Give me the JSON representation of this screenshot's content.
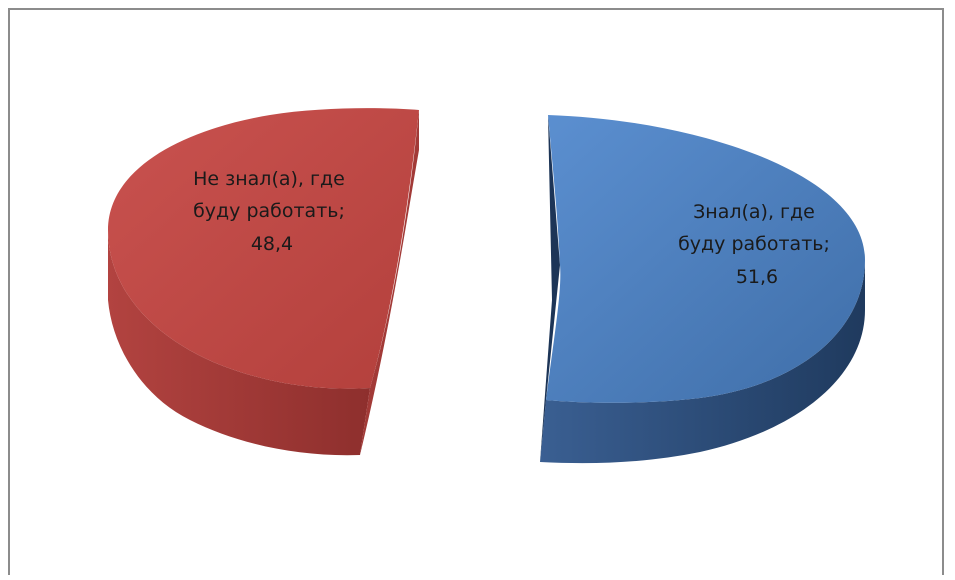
{
  "chart_data": {
    "type": "pie",
    "title": "",
    "slices": [
      {
        "label": "Знал(а), где буду работать;",
        "value": 51.6,
        "value_text": "51,6",
        "color": "#4f7fbf"
      },
      {
        "label": "Не знал(а), где буду работать;",
        "value": 48.4,
        "value_text": "48,4",
        "color": "#c0504d"
      }
    ],
    "style": "3d-exploded",
    "legend": "none"
  },
  "labels": {
    "blue": [
      "Знал(а), где",
      "буду работать;",
      "51,6"
    ],
    "red": [
      "Не знал(а), где",
      "буду работать;",
      "48,4"
    ]
  }
}
